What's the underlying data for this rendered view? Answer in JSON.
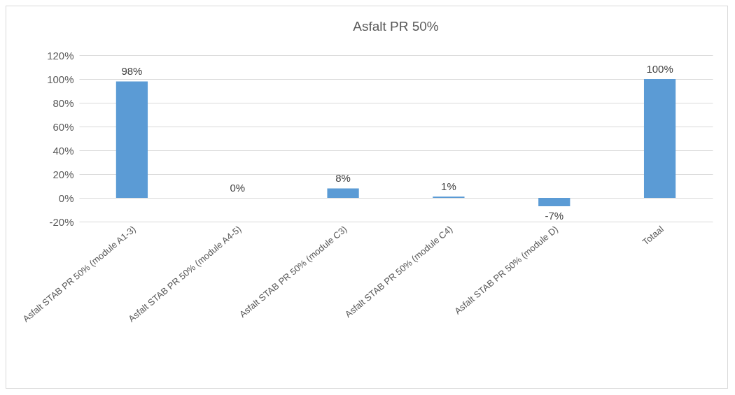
{
  "chart_data": {
    "type": "bar",
    "title": "Asfalt PR 50%",
    "categories": [
      "Asfalt STAB PR 50% (module A1-3)",
      "Asfalt STAB PR 50% (module A4-5)",
      "Asfalt STAB PR 50% (module C3)",
      "Asfalt STAB PR 50% (module C4)",
      "Asfalt STAB PR 50% (module D)",
      "Totaal"
    ],
    "values": [
      98,
      0,
      8,
      1,
      -7,
      100
    ],
    "value_labels": [
      "98%",
      "0%",
      "8%",
      "1%",
      "-7%",
      "100%"
    ],
    "color": "#5b9bd5",
    "ylim": [
      -20,
      120
    ],
    "yticks": [
      {
        "value": -20,
        "label": "-20%"
      },
      {
        "value": 0,
        "label": "0%"
      },
      {
        "value": 20,
        "label": "20%"
      },
      {
        "value": 40,
        "label": "40%"
      },
      {
        "value": 60,
        "label": "60%"
      },
      {
        "value": 80,
        "label": "80%"
      },
      {
        "value": 100,
        "label": "100%"
      },
      {
        "value": 120,
        "label": "120%"
      }
    ],
    "grid": "y"
  }
}
